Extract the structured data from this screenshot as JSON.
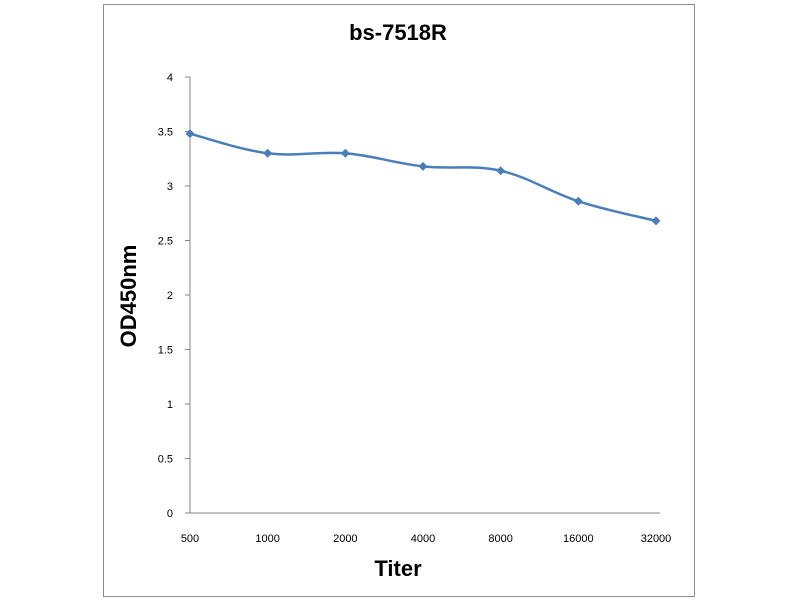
{
  "chart_data": {
    "type": "line",
    "title": "bs-7518R",
    "xlabel": "Titer",
    "ylabel": "OD450nm",
    "categories": [
      "500",
      "1000",
      "2000",
      "4000",
      "8000",
      "16000",
      "32000"
    ],
    "series": [
      {
        "values": [
          3.48,
          3.3,
          3.3,
          3.18,
          3.14,
          2.86,
          2.68
        ]
      }
    ],
    "yticks": [
      "0",
      "0.5",
      "1",
      "1.5",
      "2",
      "2.5",
      "3",
      "3.5",
      "4"
    ],
    "ylim": [
      0,
      4
    ],
    "grid": false,
    "legend": "none",
    "colors": {
      "line": "#4a7ebb",
      "axis": "#868686",
      "frame": "#8c8c8c"
    },
    "marker": "diamond"
  }
}
